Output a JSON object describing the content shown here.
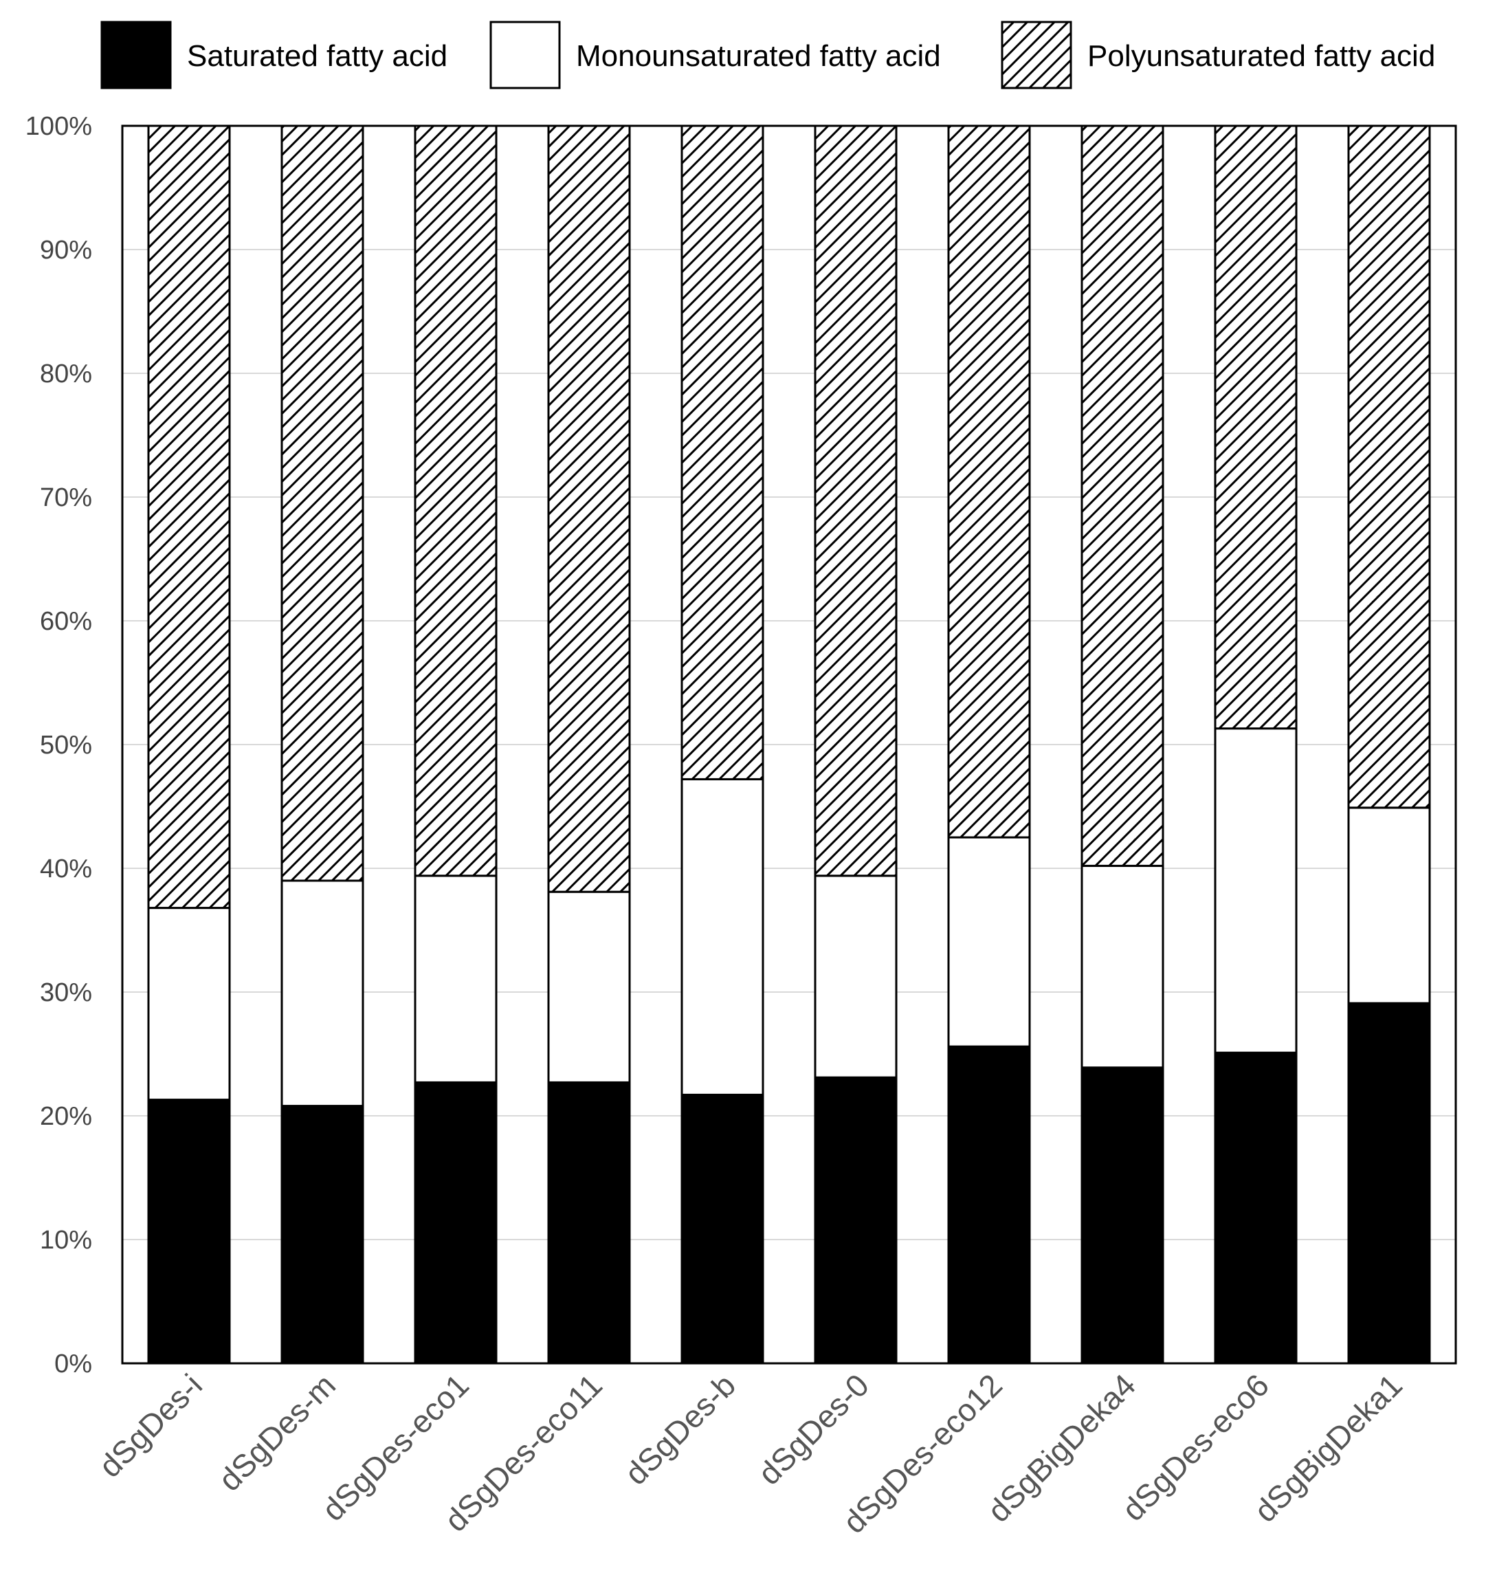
{
  "chart_data": {
    "type": "bar",
    "stacked": true,
    "percent": true,
    "categories": [
      "dSgDes-i",
      "dSgDes-m",
      "dSgDes-eco1",
      "dSgDes-eco11",
      "dSgDes-b",
      "dSgDes-0",
      "dSgDes-eco12",
      "dSgBigDeka4",
      "dSgDes-eco6",
      "dSgBigDeka1"
    ],
    "series": [
      {
        "name": "Saturated fatty acid",
        "fill": "solid",
        "color": "#000000",
        "values": [
          21.3,
          20.8,
          22.7,
          22.7,
          21.7,
          23.1,
          25.6,
          23.9,
          25.1,
          29.1
        ]
      },
      {
        "name": "Monounsaturated fatty acid",
        "fill": "empty",
        "color": "#ffffff",
        "values": [
          15.5,
          18.2,
          16.7,
          15.4,
          25.5,
          16.3,
          16.9,
          16.3,
          26.2,
          15.8
        ]
      },
      {
        "name": "Polyunsaturated fatty acid",
        "fill": "hatched",
        "color": "#000000",
        "values": [
          63.2,
          61.0,
          60.6,
          61.9,
          52.8,
          60.6,
          57.5,
          59.8,
          48.7,
          55.1
        ]
      }
    ],
    "y_ticks": [
      "0%",
      "10%",
      "20%",
      "30%",
      "40%",
      "50%",
      "60%",
      "70%",
      "80%",
      "90%",
      "100%"
    ],
    "ylim": [
      0,
      100
    ],
    "title": "",
    "xlabel": "",
    "ylabel": "",
    "grid": true,
    "legend_position": "top"
  }
}
